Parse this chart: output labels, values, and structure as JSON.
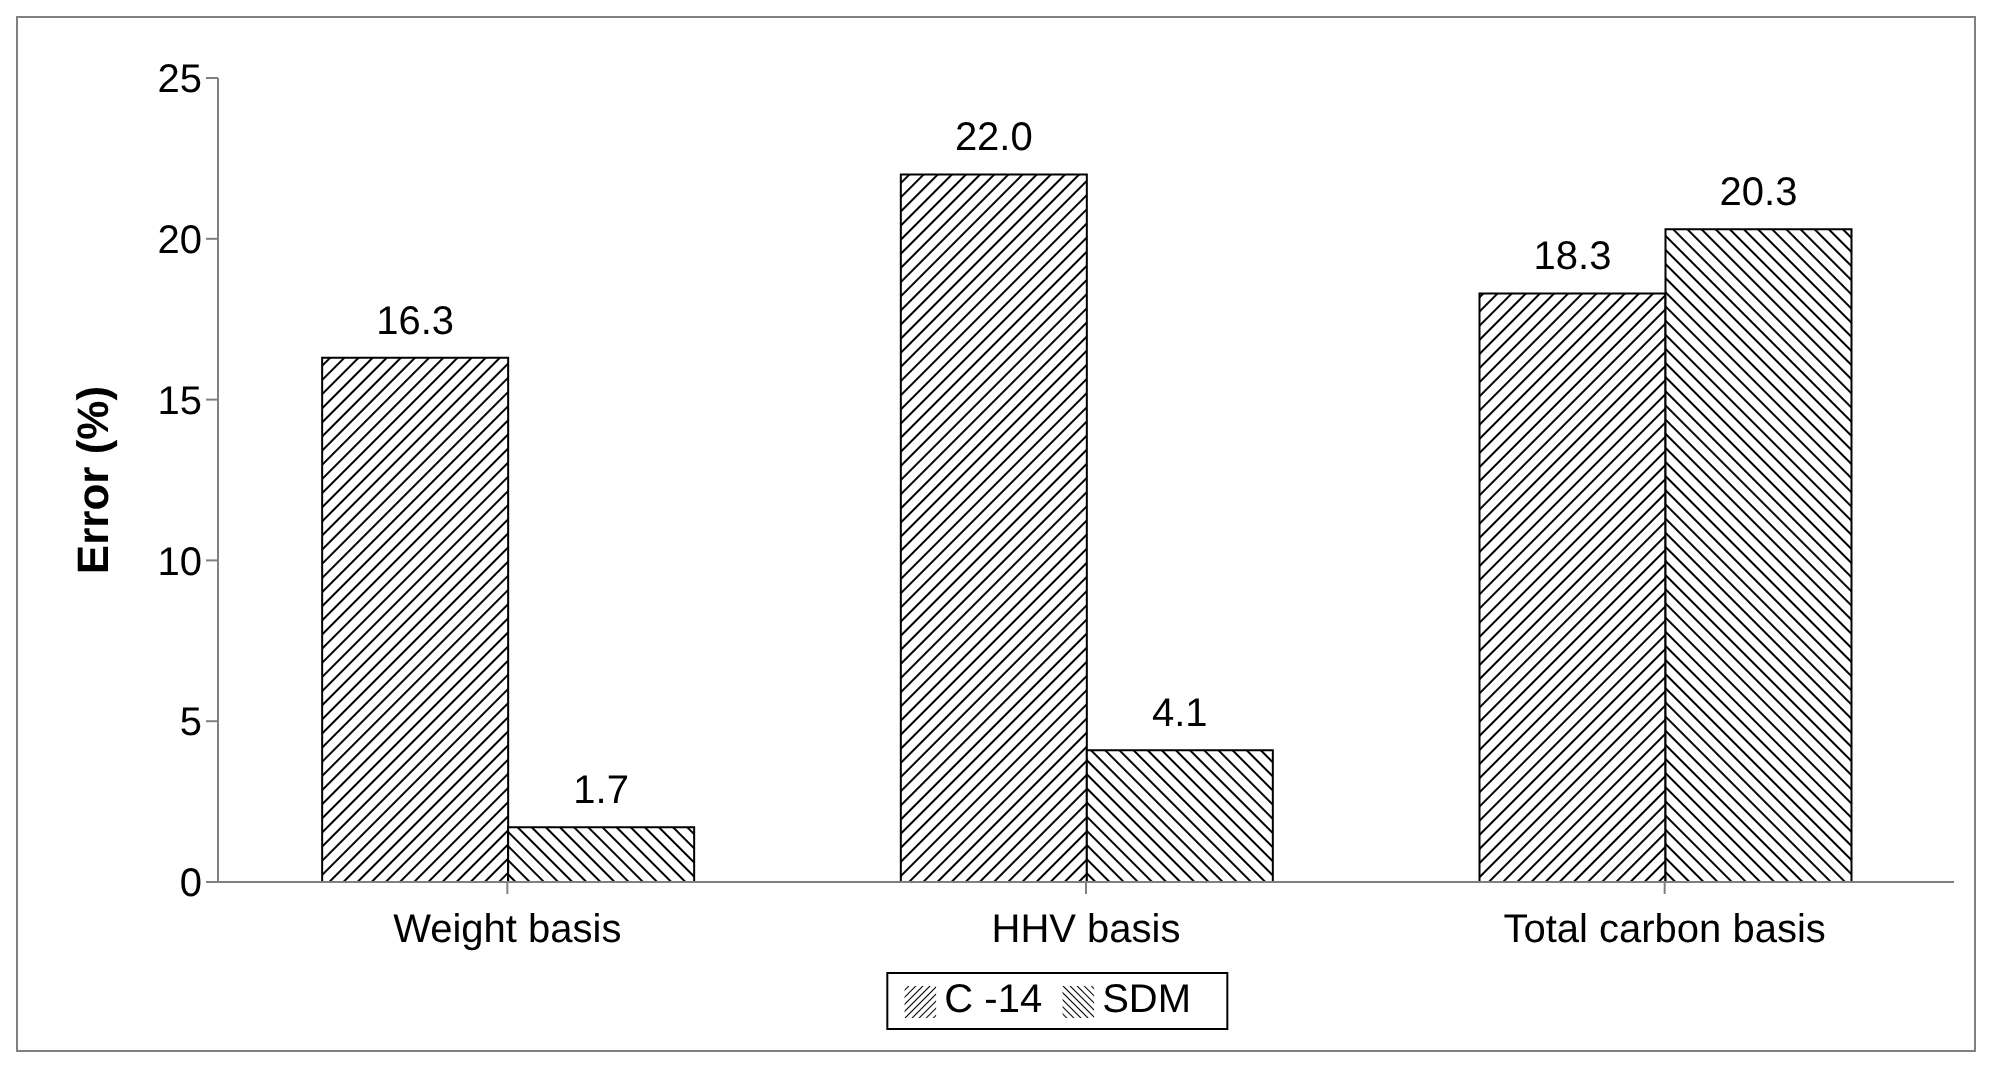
{
  "chart_data": {
    "type": "bar",
    "ylabel": "Error (%)",
    "categories": [
      "Weight basis",
      "HHV basis",
      "Total carbon basis"
    ],
    "series": [
      {
        "name": "C -14",
        "color": "#000000",
        "values": [
          16.3,
          22.0,
          18.3
        ],
        "value_labels": [
          "16.3",
          "22.0",
          "18.3"
        ]
      },
      {
        "name": "SDM",
        "color": "#000000",
        "values": [
          1.7,
          4.1,
          20.3
        ],
        "value_labels": [
          "1.7",
          "4.1",
          "20.3"
        ]
      }
    ],
    "ylim": [
      0,
      25
    ],
    "yticks": [
      0,
      5,
      10,
      15,
      20,
      25
    ],
    "legend": "bottom",
    "grid": false
  }
}
